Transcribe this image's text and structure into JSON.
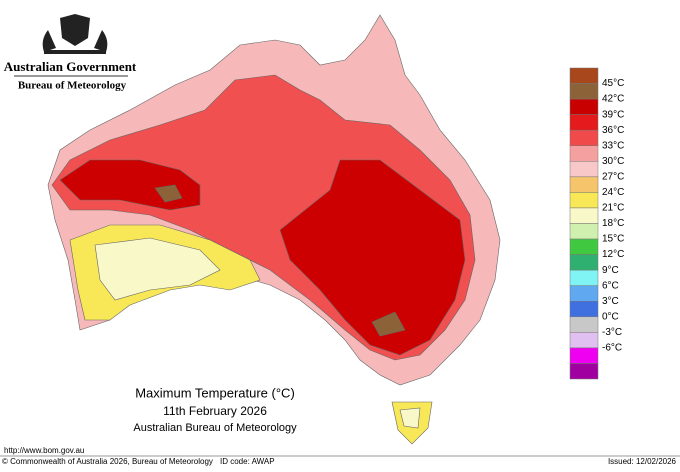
{
  "header": {
    "government": "Australian Government",
    "agency": "Bureau of Meteorology"
  },
  "title": {
    "line1": "Maximum Temperature (°C)",
    "line2": "11th February 2026",
    "line3": "Australian Bureau of Meteorology"
  },
  "legend": {
    "labels": [
      "45°C",
      "42°C",
      "39°C",
      "36°C",
      "33°C",
      "30°C",
      "27°C",
      "24°C",
      "21°C",
      "18°C",
      "15°C",
      "12°C",
      "9°C",
      "6°C",
      "3°C",
      "0°C",
      "-3°C",
      "-6°C"
    ],
    "colors": [
      "#a8461c",
      "#8c6239",
      "#c80000",
      "#e41a1c",
      "#f04a4a",
      "#f4a0a0",
      "#f8c8c8",
      "#f6c46a",
      "#f8e858",
      "#f8f8c8",
      "#d0f0b0",
      "#40c840",
      "#30b070",
      "#80f4f4",
      "#60a8f0",
      "#4070e0",
      "#c8c8c8",
      "#e0c0f0",
      "#f000f0",
      "#a000a0"
    ]
  },
  "footer": {
    "url": "http://www.bom.gov.au",
    "copyright": "© Commonwealth of Australia 2026, Bureau of Meteorology",
    "id_code": "ID code: AWAP",
    "issued": "Issued: 12/02/2026"
  }
}
